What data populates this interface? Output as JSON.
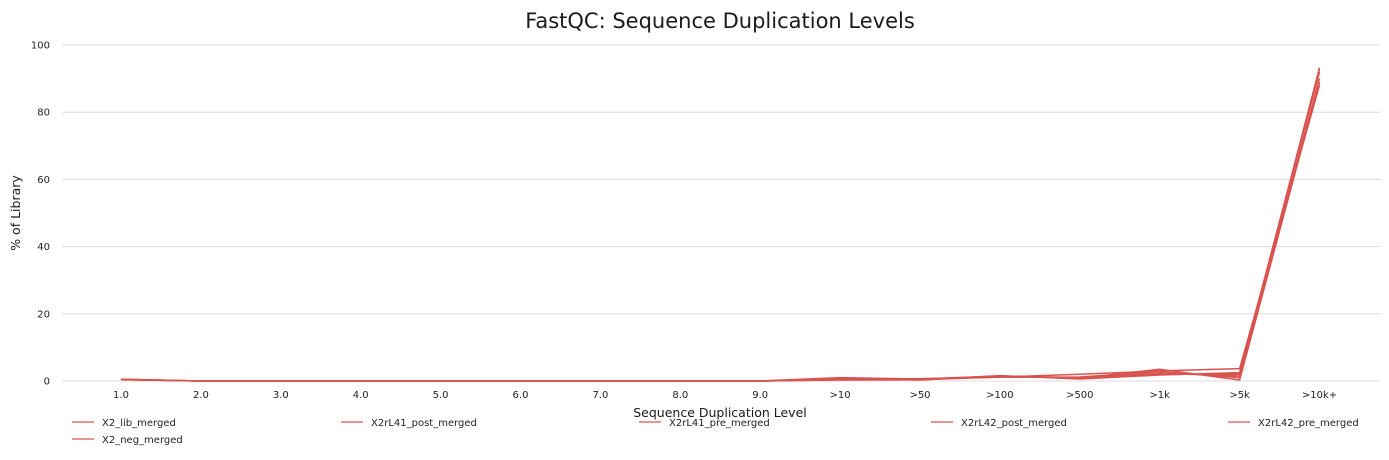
{
  "chart_data": {
    "type": "line",
    "title": "FastQC: Sequence Duplication Levels",
    "xlabel": "Sequence Duplication Level",
    "ylabel": "% of Library",
    "categories": [
      "1.0",
      "2.0",
      "3.0",
      "4.0",
      "5.0",
      "6.0",
      "7.0",
      "8.0",
      "9.0",
      ">10",
      ">50",
      ">100",
      ">500",
      ">1k",
      ">5k",
      ">10k+"
    ],
    "ylim": [
      0,
      100
    ],
    "yticks": [
      0,
      20,
      40,
      60,
      80,
      100
    ],
    "grid": true,
    "legend_position": "bottom",
    "line_color": "#d9534f",
    "series": [
      {
        "name": "X2_lib_merged",
        "values": [
          0.5,
          0,
          0,
          0,
          0,
          0,
          0,
          0,
          0,
          0.5,
          0.5,
          1.5,
          1.0,
          2.0,
          2.0,
          93.0
        ]
      },
      {
        "name": "X2_neg_merged",
        "values": [
          0.4,
          0,
          0,
          0,
          0,
          0,
          0,
          0,
          0,
          0.3,
          0.4,
          1.2,
          2.0,
          3.0,
          3.7,
          88.0
        ]
      },
      {
        "name": "X2rL41_post_merged",
        "values": [
          0.4,
          0,
          0,
          0,
          0,
          0,
          0,
          0,
          0,
          1.0,
          0.6,
          1.5,
          0.8,
          3.5,
          0.3,
          89.0
        ]
      },
      {
        "name": "X2rL41_pre_merged",
        "values": [
          0.5,
          0,
          0,
          0,
          0,
          0,
          0,
          0,
          0,
          0.6,
          0.5,
          1.3,
          1.0,
          2.3,
          1.5,
          90.0
        ]
      },
      {
        "name": "X2rL42_post_merged",
        "values": [
          0.4,
          0,
          0,
          0,
          0,
          0,
          0,
          0,
          0,
          0.8,
          0.3,
          1.6,
          0.6,
          1.8,
          2.5,
          92.0
        ]
      },
      {
        "name": "X2rL42_pre_merged",
        "values": [
          0.5,
          0,
          0,
          0,
          0,
          0,
          0,
          0,
          0,
          0.4,
          0.7,
          1.1,
          1.2,
          2.8,
          1.0,
          93.2
        ]
      }
    ]
  }
}
